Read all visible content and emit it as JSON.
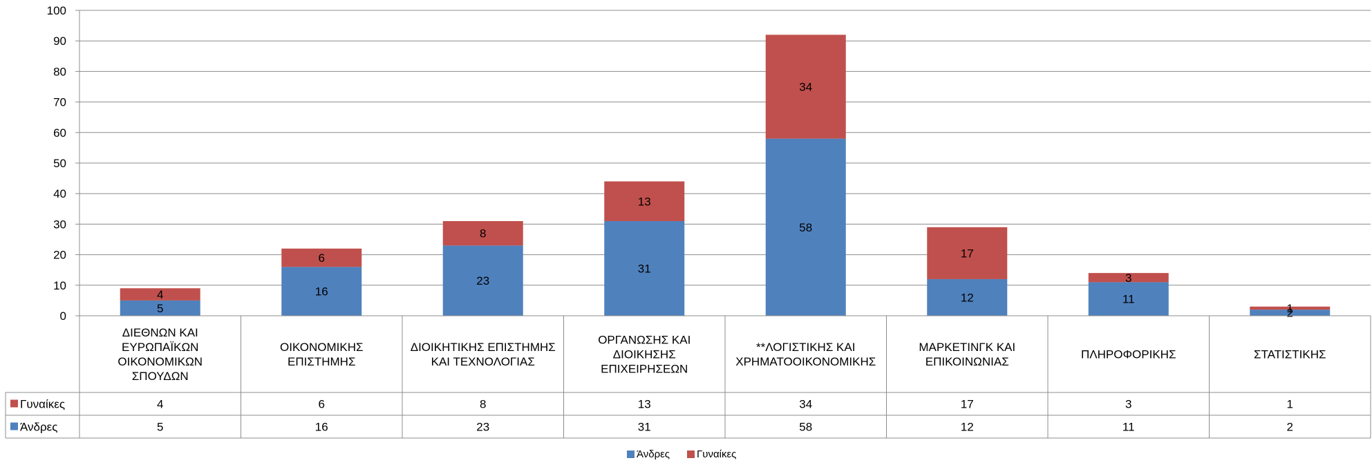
{
  "chart_data": {
    "type": "bar",
    "stacked": true,
    "categories": [
      "ΔΙΕΘΝΩΝ ΚΑΙ ΕΥΡΩΠΑΪΚΩΝ ΟΙΚΟΝΟΜΙΚΩΝ ΣΠΟΥΔΩΝ",
      "ΟΙΚΟΝΟΜΙΚΗΣ ΕΠΙΣΤΗΜΗΣ",
      "ΔΙΟΙΚΗΤΙΚΗΣ ΕΠΙΣΤΗΜΗΣ ΚΑΙ ΤΕΧΝΟΛΟΓΙΑΣ",
      "ΟΡΓΑΝΩΣΗΣ ΚΑΙ ΔΙΟΙΚΗΣΗΣ ΕΠΙΧΕΙΡΗΣΕΩΝ",
      "**ΛΟΓΙΣΤΙΚΗΣ ΚΑΙ ΧΡΗΜΑΤΟΟΙΚΟΝΟΜΙΚΗΣ",
      "ΜΑΡΚΕΤΙΝΓΚ ΚΑΙ ΕΠΙΚΟΙΝΩΝΙΑΣ",
      "ΠΛΗΡΟΦΟΡΙΚΗΣ",
      "ΣΤΑΤΙΣΤΙΚΗΣ"
    ],
    "category_lines": [
      [
        "ΔΙΕΘΝΩΝ ΚΑΙ",
        "ΕΥΡΩΠΑΪΚΩΝ",
        "ΟΙΚΟΝΟΜΙΚΩΝ",
        "ΣΠΟΥΔΩΝ"
      ],
      [
        "ΟΙΚΟΝΟΜΙΚΗΣ",
        "ΕΠΙΣΤΗΜΗΣ"
      ],
      [
        "ΔΙΟΙΚΗΤΙΚΗΣ ΕΠΙΣΤΗΜΗΣ",
        "ΚΑΙ ΤΕΧΝΟΛΟΓΙΑΣ"
      ],
      [
        "ΟΡΓΑΝΩΣΗΣ ΚΑΙ",
        "ΔΙΟΙΚΗΣΗΣ",
        "ΕΠΙΧΕΙΡΗΣΕΩΝ"
      ],
      [
        "**ΛΟΓΙΣΤΙΚΗΣ ΚΑΙ",
        "ΧΡΗΜΑΤΟΟΙΚΟΝΟΜΙΚΗΣ"
      ],
      [
        "ΜΑΡΚΕΤΙΝΓΚ ΚΑΙ",
        "ΕΠΙΚΟΙΝΩΝΙΑΣ"
      ],
      [
        "ΠΛΗΡΟΦΟΡΙΚΗΣ"
      ],
      [
        "ΣΤΑΤΙΣΤΙΚΗΣ"
      ]
    ],
    "series": [
      {
        "name": "Άνδρες",
        "color": "#4F81BD",
        "values": [
          5,
          16,
          23,
          31,
          58,
          12,
          11,
          2
        ]
      },
      {
        "name": "Γυναίκες",
        "color": "#C0504D",
        "values": [
          4,
          6,
          8,
          13,
          34,
          17,
          3,
          1
        ]
      }
    ],
    "table_rows": [
      "Γυναίκες",
      "Άνδρες"
    ],
    "ylim": [
      0,
      100
    ],
    "y_ticks": [
      0,
      10,
      20,
      30,
      40,
      50,
      60,
      70,
      80,
      90,
      100
    ],
    "grid": true,
    "legend": "bottom-center",
    "title": "",
    "xlabel": "",
    "ylabel": ""
  }
}
